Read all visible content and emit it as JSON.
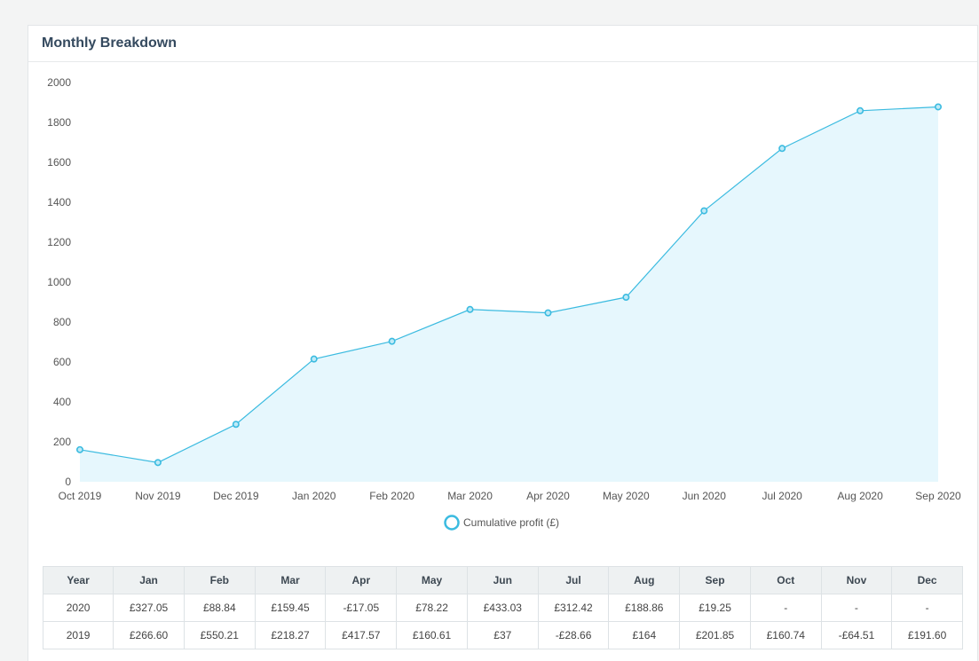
{
  "panel": {
    "title": "Monthly Breakdown"
  },
  "colors": {
    "line": "#3bbbe0",
    "fill": "#e6f7fd",
    "header_bg": "#eef1f2"
  },
  "chart_data": {
    "type": "area",
    "categories": [
      "Oct 2019",
      "Nov 2019",
      "Dec 2019",
      "Jan 2020",
      "Feb 2020",
      "Mar 2020",
      "Apr 2020",
      "May 2020",
      "Jun 2020",
      "Jul 2020",
      "Aug 2020",
      "Sep 2020"
    ],
    "series": [
      {
        "name": "Cumulative profit (£)",
        "values": [
          160.74,
          96.23,
          287.83,
          614.88,
          703.72,
          863.17,
          846.12,
          924.34,
          1357.37,
          1669.79,
          1858.65,
          1877.9
        ]
      }
    ],
    "yticks": [
      0,
      200,
      400,
      600,
      800,
      1000,
      1200,
      1400,
      1600,
      1800,
      2000
    ],
    "ylim": [
      0,
      2000
    ],
    "legend": "bottom-center",
    "grid": false
  },
  "table": {
    "headers": [
      "Year",
      "Jan",
      "Feb",
      "Mar",
      "Apr",
      "May",
      "Jun",
      "Jul",
      "Aug",
      "Sep",
      "Oct",
      "Nov",
      "Dec"
    ],
    "rows": [
      [
        "2020",
        "£327.05",
        "£88.84",
        "£159.45",
        "-£17.05",
        "£78.22",
        "£433.03",
        "£312.42",
        "£188.86",
        "£19.25",
        "-",
        "-",
        "-"
      ],
      [
        "2019",
        "£266.60",
        "£550.21",
        "£218.27",
        "£417.57",
        "£160.61",
        "£37",
        "-£28.66",
        "£164",
        "£201.85",
        "£160.74",
        "-£64.51",
        "£191.60"
      ]
    ]
  }
}
